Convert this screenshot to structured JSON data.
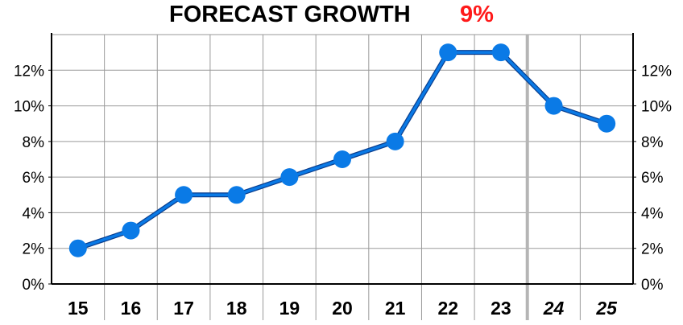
{
  "chart_data": {
    "type": "line",
    "title": "FORECAST GROWTH",
    "highlight_value": "9%",
    "highlight_color": "#ff1a1a",
    "line_color": "#0a7ae6",
    "x": [
      "15",
      "16",
      "17",
      "18",
      "19",
      "20",
      "21",
      "22",
      "23",
      "24",
      "25"
    ],
    "forecast_categories": [
      "24",
      "25"
    ],
    "series": [
      {
        "values": [
          2,
          3,
          5,
          5,
          6,
          7,
          8,
          13,
          13,
          10,
          9
        ]
      }
    ],
    "ylim": [
      0,
      14
    ],
    "yticks": [
      0,
      2,
      4,
      6,
      8,
      10,
      12
    ],
    "ytick_labels": [
      "0%",
      "2%",
      "4%",
      "6%",
      "8%",
      "10%",
      "12%"
    ],
    "xlabel": "",
    "ylabel": "",
    "grid": true,
    "legend": "none"
  }
}
